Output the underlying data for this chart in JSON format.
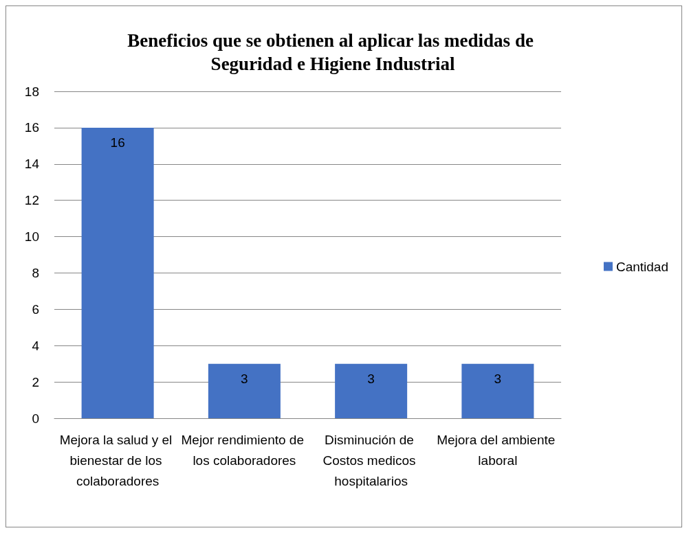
{
  "chart_data": {
    "type": "bar",
    "title": "Beneficios que se obtienen al aplicar las medidas de Seguridad e Higiene Industrial",
    "categories": [
      "Mejora la salud y el bienestar de los colaboradores",
      "Mejor rendimiento de los colaboradores",
      "Disminución de Costos medicos hospitalarios",
      "Mejora del ambiente laboral"
    ],
    "series": [
      {
        "name": "Cantidad",
        "color": "#4472c4",
        "values": [
          16,
          3,
          3,
          3
        ]
      }
    ],
    "ylim": [
      0,
      18
    ],
    "yticks": [
      0,
      2,
      4,
      6,
      8,
      10,
      12,
      14,
      16,
      18
    ],
    "grid": "y",
    "legend": "right",
    "data_labels": true
  }
}
